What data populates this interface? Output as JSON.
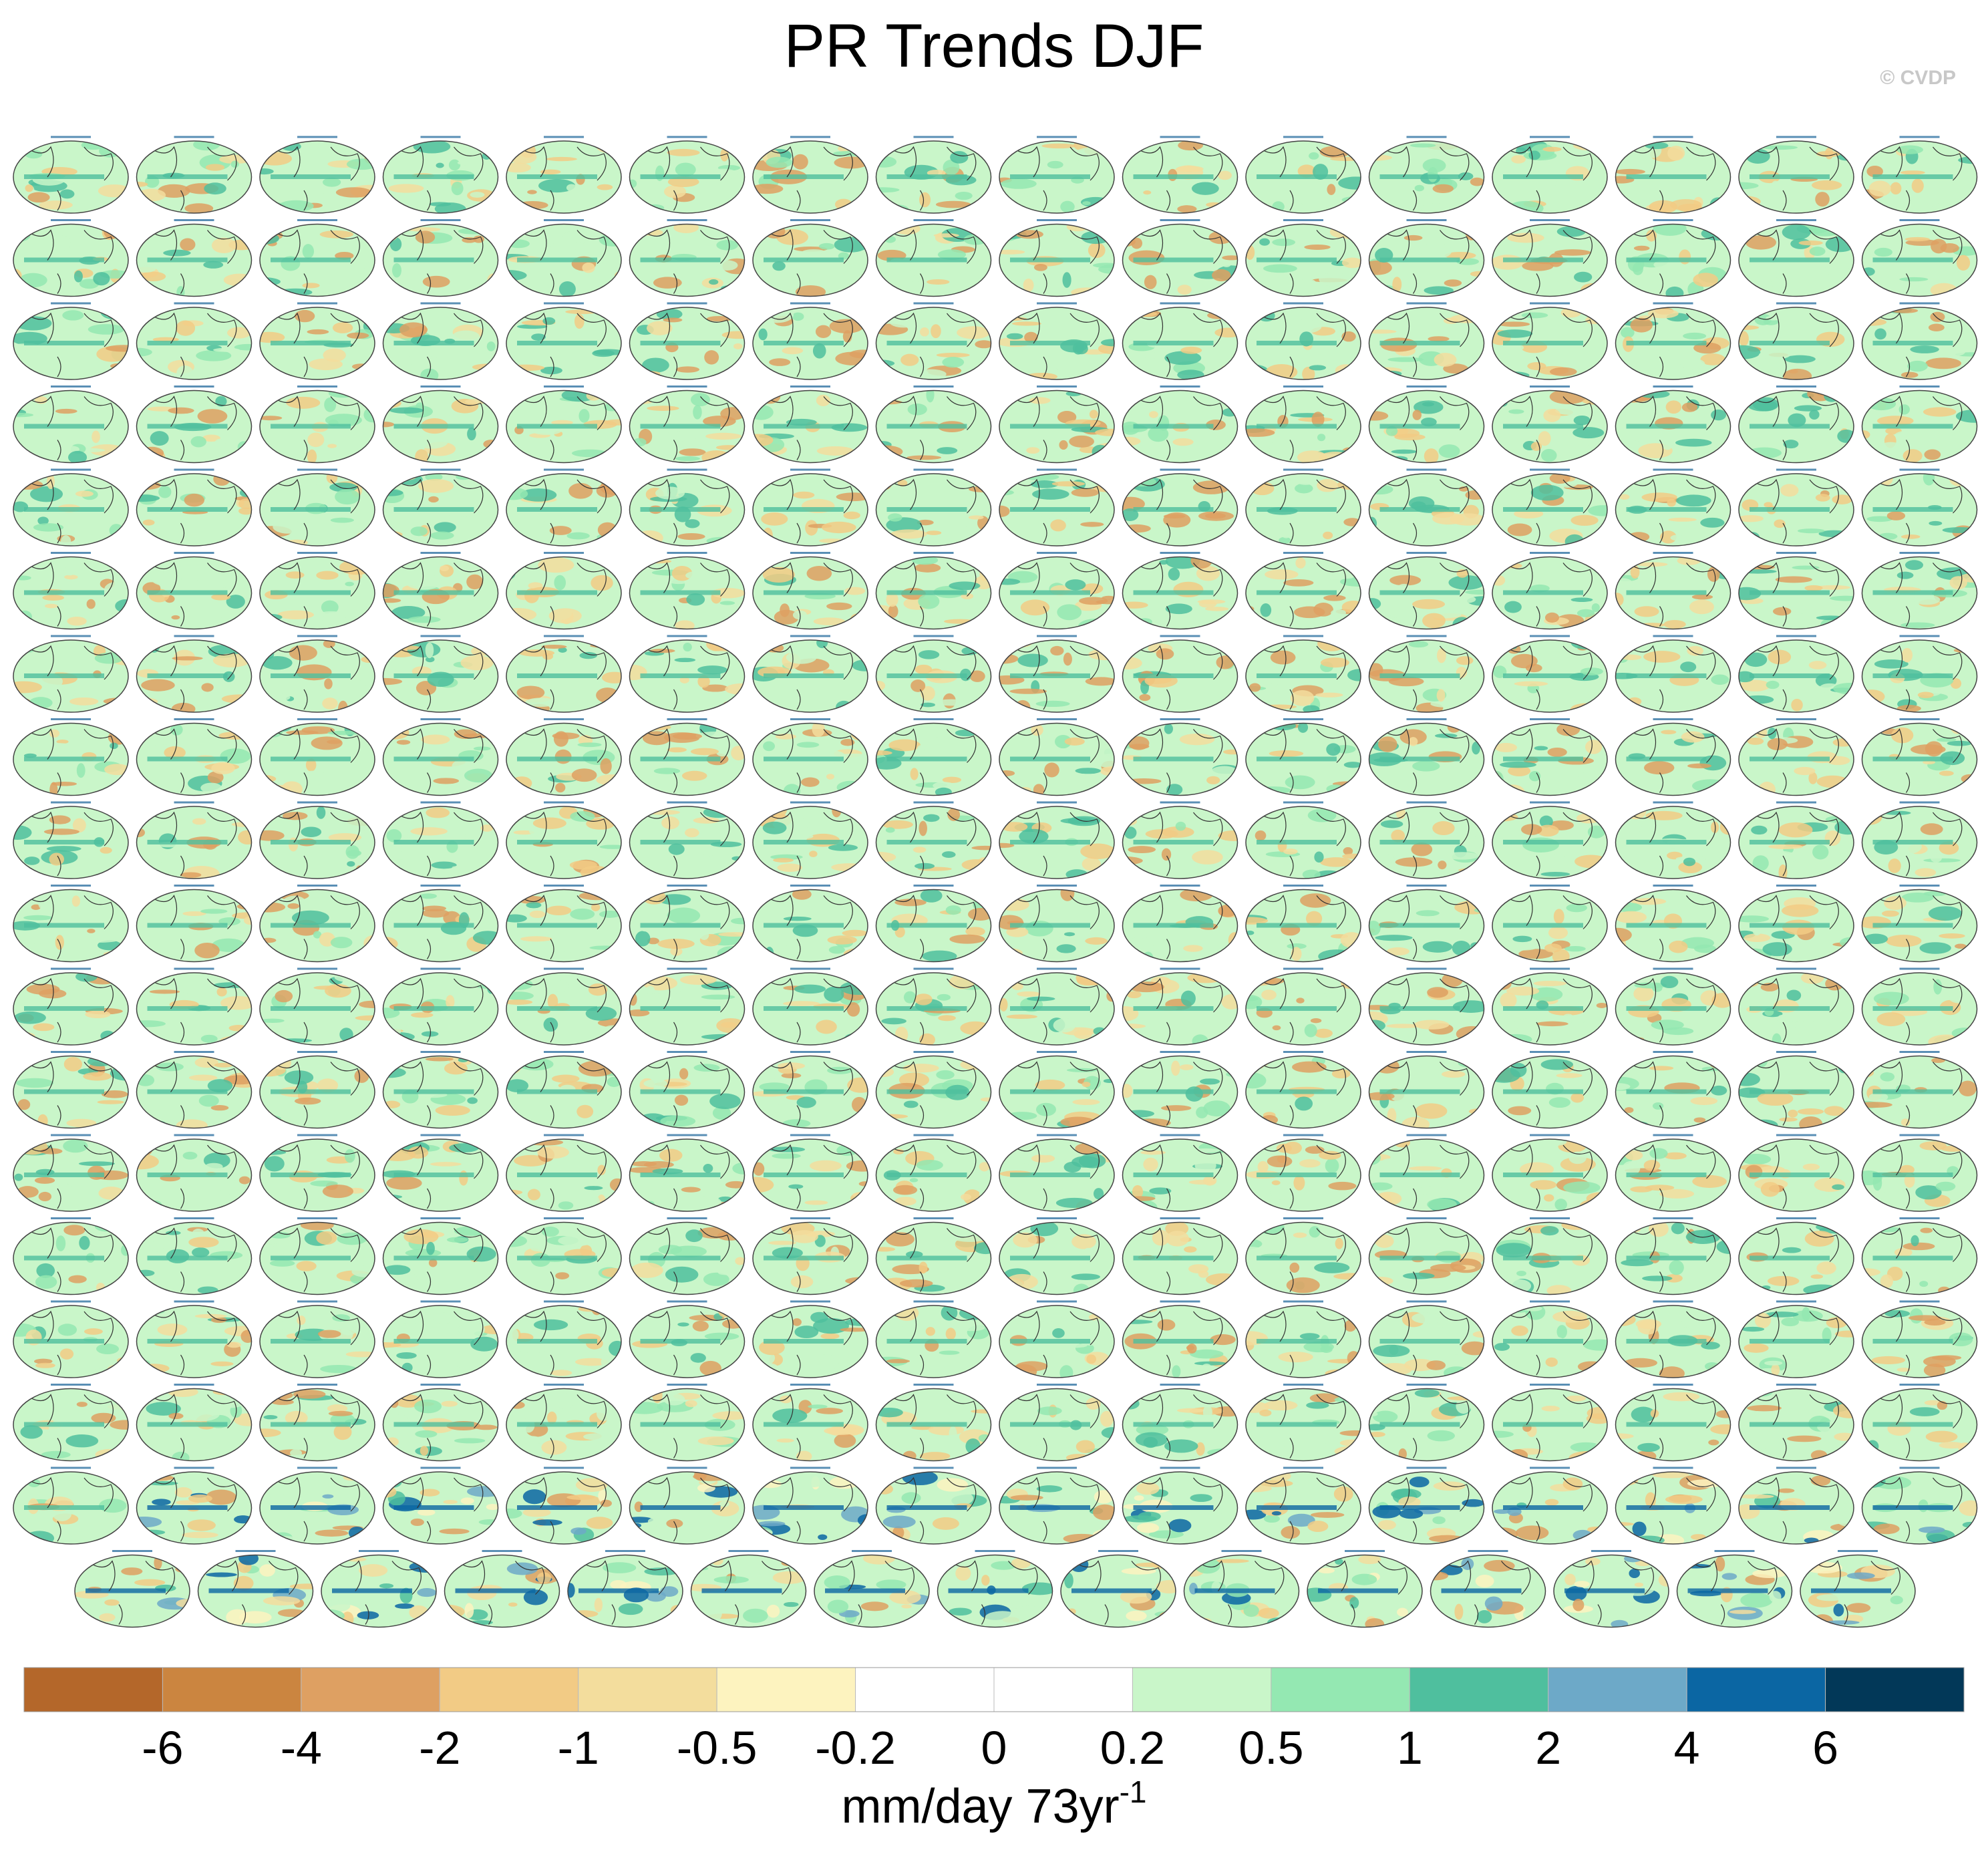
{
  "chart_data": {
    "type": "map-panels",
    "title": "PR Trends DJF",
    "credit": "© CVDP",
    "colorbar": {
      "colors": [
        "#b4672a",
        "#cb8540",
        "#dea062",
        "#f2cb85",
        "#f3dd9d",
        "#fdf3bf",
        "#ffffff",
        "#ffffff",
        "#c9f6c9",
        "#94e8b2",
        "#4fbf9e",
        "#6da9c8",
        "#0b66a3",
        "#023858"
      ],
      "ticks": [
        -6,
        -4,
        -2,
        -1,
        -0.5,
        -0.2,
        0,
        0.2,
        0.5,
        1,
        2,
        4,
        6
      ],
      "label": "mm/day 73yr",
      "label_superscript": "-1"
    }
  }
}
